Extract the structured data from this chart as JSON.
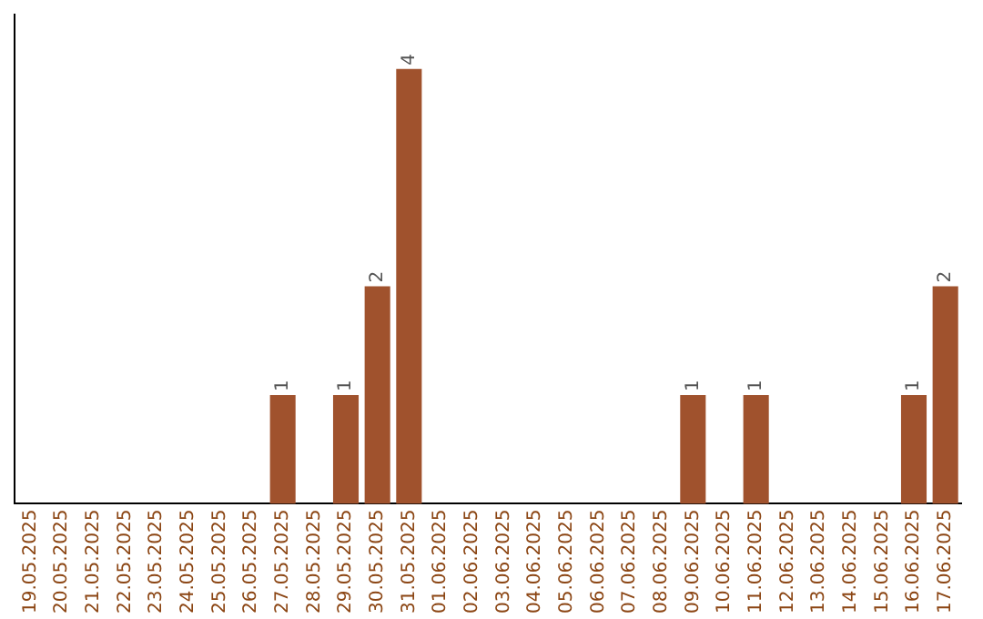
{
  "chart_data": {
    "type": "bar",
    "categories": [
      "19.05.2025",
      "20.05.2025",
      "21.05.2025",
      "22.05.2025",
      "23.05.2025",
      "24.05.2025",
      "25.05.2025",
      "26.05.2025",
      "27.05.2025",
      "28.05.2025",
      "29.05.2025",
      "30.05.2025",
      "31.05.2025",
      "01.06.2025",
      "02.06.2025",
      "03.06.2025",
      "04.06.2025",
      "05.06.2025",
      "06.06.2025",
      "07.06.2025",
      "08.06.2025",
      "09.06.2025",
      "10.06.2025",
      "11.06.2025",
      "12.06.2025",
      "13.06.2025",
      "14.06.2025",
      "15.06.2025",
      "16.06.2025",
      "17.06.2025"
    ],
    "values": [
      0,
      0,
      0,
      0,
      0,
      0,
      0,
      0,
      1,
      0,
      1,
      2,
      4,
      0,
      0,
      0,
      0,
      0,
      0,
      0,
      0,
      1,
      0,
      1,
      0,
      0,
      0,
      0,
      1,
      2
    ],
    "value_labels": [
      null,
      null,
      null,
      null,
      null,
      null,
      null,
      null,
      "1",
      null,
      "1",
      "2",
      "4",
      null,
      null,
      null,
      null,
      null,
      null,
      null,
      null,
      "1",
      null,
      "1",
      null,
      null,
      null,
      null,
      "1",
      "2"
    ],
    "color": "#a0522d",
    "grid": false,
    "legend": false
  }
}
